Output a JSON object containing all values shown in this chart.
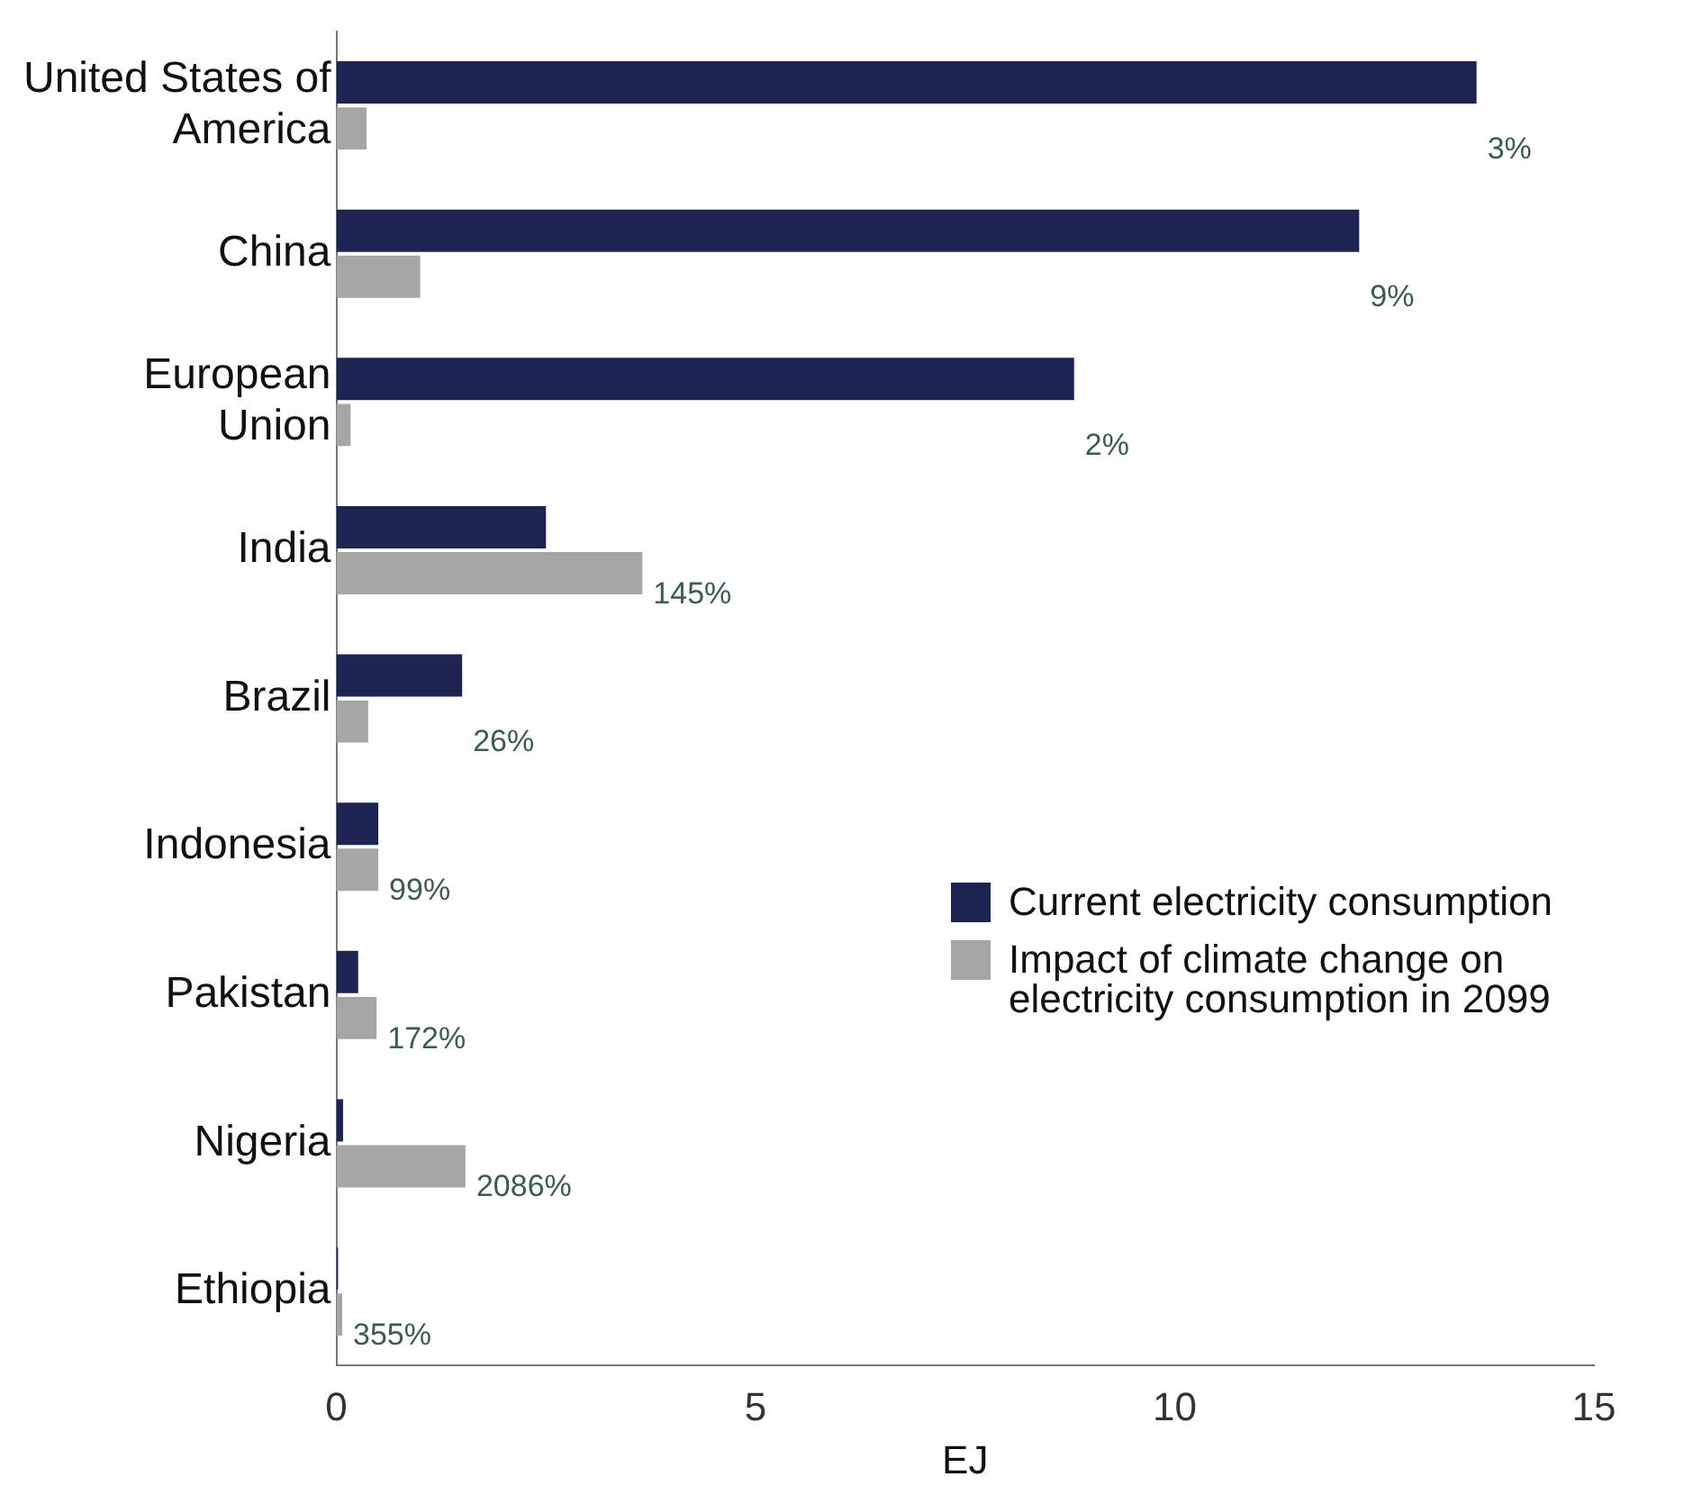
{
  "chart_data": {
    "type": "bar",
    "orientation": "horizontal",
    "xlabel": "EJ",
    "categories": [
      "United States of America",
      "China",
      "European Union",
      "India",
      "Brazil",
      "Indonesia",
      "Pakistan",
      "Nigeria",
      "Ethiopia"
    ],
    "series": [
      {
        "name": "Current electricity consumption",
        "color": "#1c2551",
        "values": [
          13.6,
          12.2,
          8.8,
          2.5,
          1.5,
          0.5,
          0.26,
          0.08,
          0.02
        ]
      },
      {
        "name": "Impact of climate change on electricity consumption in 2099",
        "color": "#a6a6a6",
        "values": [
          0.36,
          1.0,
          0.17,
          3.65,
          0.38,
          0.5,
          0.48,
          1.54,
          0.07
        ]
      }
    ],
    "annotations": [
      {
        "text": "3%",
        "x": 13.6,
        "y": "United States of America"
      },
      {
        "text": "9%",
        "x": 12.2,
        "y": "China"
      },
      {
        "text": "2%",
        "x": 8.8,
        "y": "European Union"
      },
      {
        "text": "145%",
        "x": 3.65,
        "y": "India"
      },
      {
        "text": "26%",
        "x": 1.5,
        "y": "Brazil"
      },
      {
        "text": "99%",
        "x": 0.5,
        "y": "Indonesia"
      },
      {
        "text": "172%",
        "x": 0.48,
        "y": "Pakistan"
      },
      {
        "text": "2086%",
        "x": 1.54,
        "y": "Nigeria"
      },
      {
        "text": "355%",
        "x": 0.07,
        "y": "Ethiopia"
      }
    ],
    "xlim": [
      0,
      15
    ],
    "xticks": [
      0,
      5,
      10,
      15
    ],
    "grid": false,
    "legend": "right"
  }
}
